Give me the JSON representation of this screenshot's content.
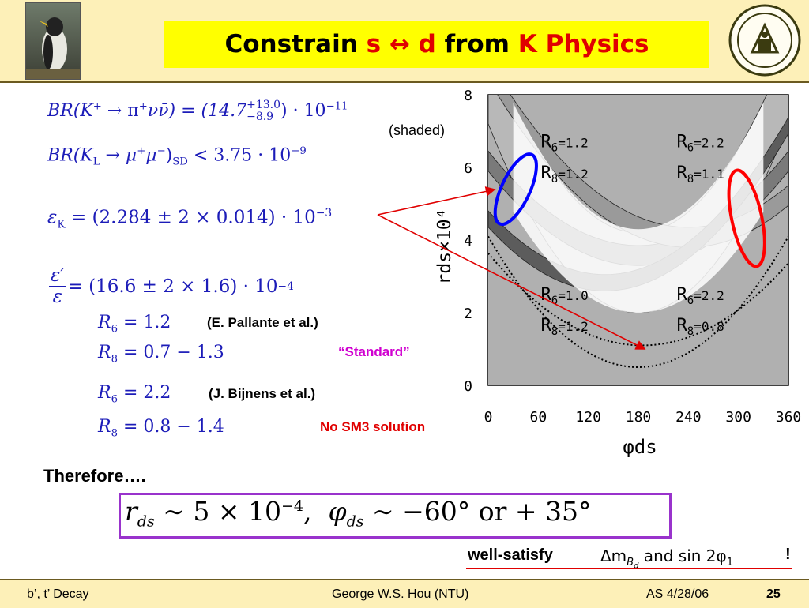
{
  "title": {
    "pre": "Constrain ",
    "s": "s",
    "arrow": "↔",
    "d": "d",
    "mid": " from ",
    "k": "K Physics"
  },
  "formulas": {
    "br_kplus": {
      "lhs": "BR(K",
      "plus": "+",
      "arrow": " → π",
      "plus2": "+",
      "rest": "νν̄) = (14.7",
      "up": "+13.0",
      "down": "−8.9",
      "tail": ") · 10",
      "exp": "−11"
    },
    "br_kl": {
      "lhs": "BR(K",
      "sub": "L",
      "rest": " → μ",
      "sup1": "+",
      "mu": "μ",
      "sup2": "−",
      "close": ")",
      "sd": "SD",
      "rhs": " < 3.75 · 10",
      "exp": "−9"
    },
    "eps_k": {
      "lhs": "ε",
      "sub": "K",
      "rhs": " = (2.284 ± 2 × 0.014) · 10",
      "exp": "−3"
    },
    "eps_prime": {
      "num": "ε′",
      "den": "ε",
      "rhs": " = (16.6 ± 2 × 1.6) · 10",
      "exp": "−4"
    },
    "r6_a": {
      "lhs": "R",
      "sub": "6",
      "rhs": " = 1.2"
    },
    "r8_a": {
      "lhs": "R",
      "sub": "8",
      "rhs": " = 0.7 − 1.3"
    },
    "r6_b": {
      "lhs": "R",
      "sub": "6",
      "rhs": " = 2.2"
    },
    "r8_b": {
      "lhs": "R",
      "sub": "8",
      "rhs": " = 0.8 − 1.4"
    }
  },
  "notes": {
    "shaded": "(shaded)",
    "pallante": "(E. Pallante et al.)",
    "standard": "“Standard”",
    "bijnens": "(J. Bijnens et al.)",
    "no_sm3": "No SM3 solution",
    "therefore": "Therefore….",
    "well_satisfy": "well-satisfy",
    "exclaim": "!"
  },
  "result": {
    "r": "r",
    "rsub": "ds",
    "sim": " ∼ 5 × 10",
    "exp": "−4",
    "comma": ",",
    "phi": "φ",
    "phisub": "ds",
    "rest": " ∼ −60° or + 35°"
  },
  "satisfy_formula": {
    "delta": "Δm",
    "sub": "B",
    "subsub": "d",
    "and": " and ",
    "sin": "sin 2φ",
    "sinsub": "1"
  },
  "footer": {
    "left": "b’, t’ Decay",
    "center": "George W.S. Hou (NTU)",
    "date": "AS 4/28/06",
    "page": "25"
  },
  "colors": {
    "title_red": "#e00000",
    "formula_blue": "#1c1cb8",
    "result_border": "#9933cc",
    "circle_blue": "#0000ff",
    "circle_red": "#ff0000",
    "arrow_red": "#e00000"
  },
  "chart_data": {
    "type": "area",
    "xlabel": "φds",
    "ylabel": "rds×10⁴",
    "xlim": [
      0,
      360
    ],
    "ylim": [
      0,
      8
    ],
    "x_ticks": [
      "0",
      "60",
      "120",
      "180",
      "240",
      "300",
      "360"
    ],
    "y_ticks": [
      "0",
      "2",
      "4",
      "6",
      "8"
    ],
    "region_labels": [
      {
        "r6": "R6=1.2",
        "r8": "R8=1.2",
        "r6_base": "R",
        "r6_sub": "6",
        "r6_val": "=1.2",
        "r8_base": "R",
        "r8_sub": "8",
        "r8_val": "=1.2",
        "x": 63,
        "y": 6.55
      },
      {
        "r6": "R6=2.2",
        "r8": "R8=1.1",
        "r6_base": "R",
        "r6_sub": "6",
        "r6_val": "=2.2",
        "r8_base": "R",
        "r8_sub": "8",
        "r8_val": "=1.1",
        "x": 226,
        "y": 6.55
      },
      {
        "r6": "R6=1.0",
        "r8": "R8=1.2",
        "r6_base": "R",
        "r6_sub": "6",
        "r6_val": "=1.0",
        "r8_base": "R",
        "r8_sub": "8",
        "r8_val": "=1.2",
        "x": 63,
        "y": 2.35
      },
      {
        "r6": "R6=2.2",
        "r8": "R8=0.8",
        "r6_base": "R",
        "r6_sub": "6",
        "r6_val": "=2.2",
        "r8_base": "R",
        "r8_sub": "8",
        "r8_val": "=0.8",
        "x": 226,
        "y": 2.35
      }
    ],
    "bands": [
      {
        "shade": "#b8b8b8",
        "base": 2.0,
        "width": 2.2,
        "center": 180,
        "k": 5.2
      },
      {
        "shade": "#7a7a7a",
        "base": 3.3,
        "width": 0.55,
        "center": 180,
        "k": 2.6
      },
      {
        "shade": "#9a9a9a",
        "base": 3.8,
        "width": 0.55,
        "center": 240,
        "k": 2.6
      },
      {
        "shade": "#5c5c5c",
        "base": 2.6,
        "width": 0.45,
        "center": 140,
        "k": 2.9
      }
    ],
    "dotted_curves": [
      {
        "center": 185,
        "base": 1.1,
        "k": 2.4
      },
      {
        "center": 180,
        "base": 0.5,
        "k": 3.6
      }
    ],
    "circles": [
      {
        "color": "blue",
        "x": 33,
        "y": 5.4,
        "rx": 17,
        "ry": 1.05
      },
      {
        "color": "red",
        "x": 310,
        "y": 4.6,
        "rx": 18,
        "ry": 1.35
      }
    ]
  }
}
